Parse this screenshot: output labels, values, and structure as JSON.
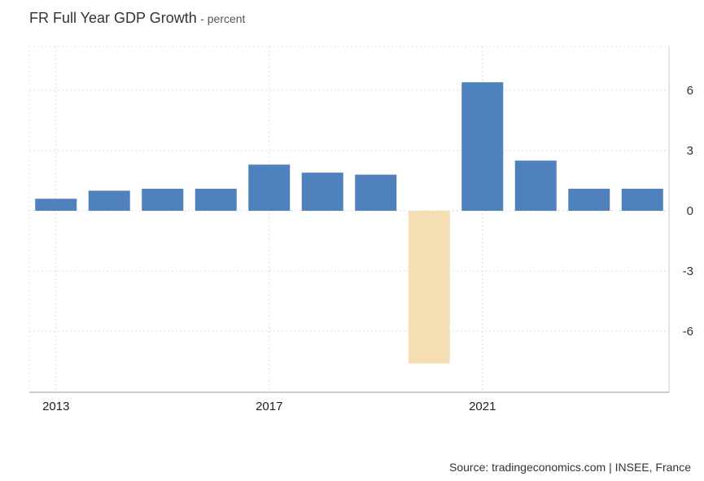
{
  "chart_data": {
    "type": "bar",
    "title": "FR Full Year GDP Growth",
    "subtitle": "- percent",
    "x": [
      2013,
      2014,
      2015,
      2016,
      2017,
      2018,
      2019,
      2020,
      2021,
      2022,
      2023,
      2024
    ],
    "values": [
      0.6,
      1.0,
      1.1,
      1.1,
      2.3,
      1.9,
      1.8,
      -7.6,
      6.4,
      2.5,
      1.1,
      1.1
    ],
    "x_tick_labels": [
      "2013",
      "2017",
      "2021"
    ],
    "x_ticks": [
      2013,
      2017,
      2021
    ],
    "y_ticks": [
      6,
      3,
      0,
      -3,
      -6
    ],
    "y_tick_labels": [
      "6",
      "3",
      "0",
      "-3",
      "-6"
    ],
    "ylim": [
      -9,
      8.2
    ],
    "y_axis_side": "right",
    "grid": true,
    "colors": {
      "positive": "#4f81bd",
      "negative": "#f5deb3"
    },
    "source": "Source: tradingeconomics.com | INSEE, France"
  }
}
